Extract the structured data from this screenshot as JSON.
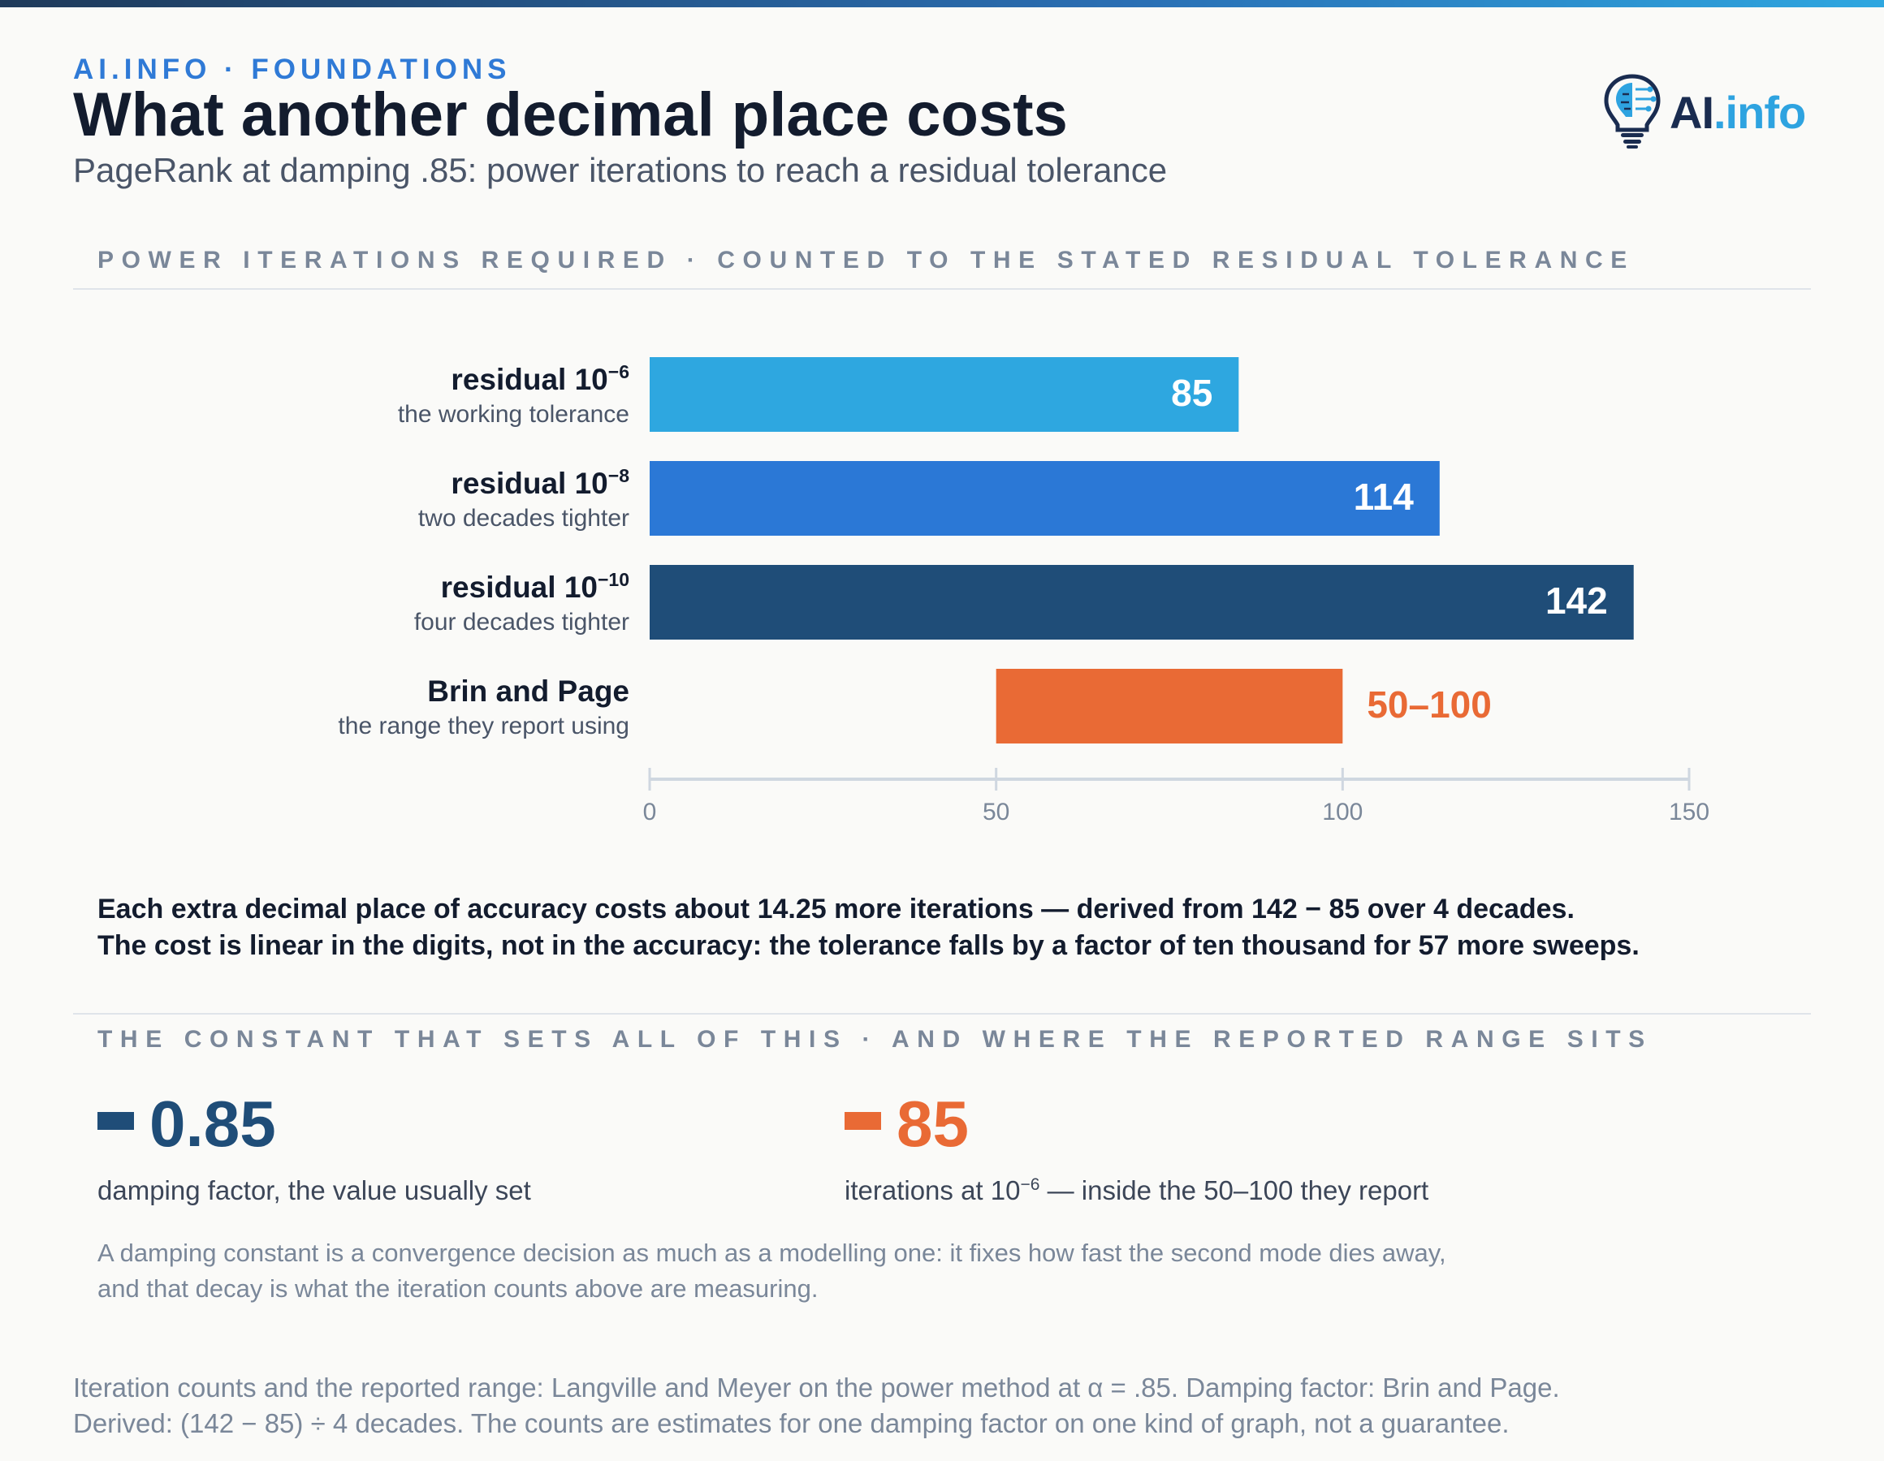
{
  "header": {
    "kicker": "AI.INFO · FOUNDATIONS",
    "title": "What another decimal place costs",
    "subtitle": "PageRank at damping .85: power iterations to reach a residual tolerance",
    "logo": {
      "prefix": "AI",
      "suffix": ".info"
    }
  },
  "section1_label": "POWER ITERATIONS REQUIRED · COUNTED TO THE STATED RESIDUAL TOLERANCE",
  "chart_data": {
    "type": "bar",
    "orientation": "horizontal",
    "xlim": [
      0,
      150
    ],
    "x_ticks": [
      0,
      50,
      100,
      150
    ],
    "grid": false,
    "legend": "none",
    "bars": [
      {
        "label": "residual 10",
        "exponent": "−6",
        "sublabel": "the working tolerance",
        "start": 0,
        "value": 85,
        "value_label": "85",
        "color": "#2ea7e0",
        "label_position": "inside"
      },
      {
        "label": "residual 10",
        "exponent": "−8",
        "sublabel": "two decades tighter",
        "start": 0,
        "value": 114,
        "value_label": "114",
        "color": "#2b78d6",
        "label_position": "inside"
      },
      {
        "label": "residual 10",
        "exponent": "−10",
        "sublabel": "four decades tighter",
        "start": 0,
        "value": 142,
        "value_label": "142",
        "color": "#1f4d78",
        "label_position": "inside"
      },
      {
        "label": "Brin and Page",
        "exponent": "",
        "sublabel": "the range they report using",
        "start": 50,
        "value": 100,
        "value_label": "50–100",
        "color": "#e96a35",
        "label_position": "outside"
      }
    ]
  },
  "callout": {
    "line1": "Each extra decimal place of accuracy costs about 14.25 more iterations — derived from 142 − 85 over 4 decades.",
    "line2": "The cost is linear in the digits, not in the accuracy: the tolerance falls by a factor of ten thousand for 57 more sweeps."
  },
  "section2_label": "THE CONSTANT THAT SETS ALL OF THIS · AND WHERE THE REPORTED RANGE SITS",
  "stats": {
    "damping": {
      "value": "0.85",
      "label": "damping factor, the value usually set",
      "color": "#1f4d78"
    },
    "iterations": {
      "value": "85",
      "label_pre": "iterations at 10",
      "label_exp": "−6",
      "label_post": " — inside the 50–100 they report",
      "color": "#e96a35"
    }
  },
  "note": {
    "line1": "A damping constant is a convergence decision as much as a modelling one: it fixes how fast the second mode dies away,",
    "line2": "and that decay is what the iteration counts above are measuring."
  },
  "source": {
    "line1": "Iteration counts and the reported range: Langville and Meyer on the power method at α = .85. Damping factor: Brin and Page.",
    "line2": "Derived: (142 − 85) ÷ 4 decades. The counts are estimates for one damping factor on one kind of graph, not a guarantee."
  }
}
